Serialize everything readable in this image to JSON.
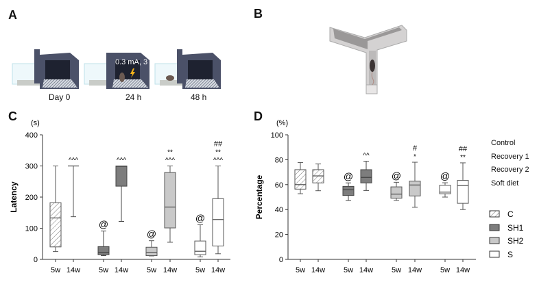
{
  "panels": {
    "a": {
      "letter": "A",
      "stages": [
        "Day 0",
        "24 h",
        "48 h"
      ],
      "shock_label": "0.3 mA, 3 s"
    },
    "b": {
      "letter": "B"
    },
    "c": {
      "letter": "C"
    },
    "d": {
      "letter": "D"
    }
  },
  "legend": {
    "conditions": [
      "Control",
      "Recovery 1",
      "Recovery 2",
      "Soft diet"
    ],
    "groups": [
      {
        "label": "C",
        "fill": "hatch"
      },
      {
        "label": "SH1",
        "fill": "#7d7d7d"
      },
      {
        "label": "SH2",
        "fill": "#c9c9c9"
      },
      {
        "label": "S",
        "fill": "#ffffff"
      }
    ]
  },
  "chart_data": [
    {
      "type": "box",
      "panel": "C",
      "unit": "(s)",
      "ylabel": "Latency",
      "ylim": [
        0,
        400
      ],
      "yticks": [
        "0",
        "100",
        "200",
        "300",
        "400"
      ],
      "categories": [
        "5w",
        "14w",
        "5w",
        "14w",
        "5w",
        "14w",
        "5w",
        "14w"
      ],
      "groups": [
        "C",
        "C",
        "SH1",
        "SH1",
        "SH2",
        "SH2",
        "S",
        "S"
      ],
      "boxes": [
        {
          "min": 25,
          "q1": 40,
          "median": 133,
          "q3": 182,
          "max": 300,
          "marks": []
        },
        {
          "min": 137,
          "q1": 300,
          "median": 300,
          "q3": 300,
          "max": 300,
          "marks": [
            "^^^"
          ]
        },
        {
          "min": 12,
          "q1": 15,
          "median": 22,
          "q3": 41,
          "max": 91,
          "marks": [
            "@"
          ]
        },
        {
          "min": 122,
          "q1": 235,
          "median": 299,
          "q3": 300,
          "max": 300,
          "marks": [
            "^^^"
          ]
        },
        {
          "min": 11,
          "q1": 12,
          "median": 22,
          "q3": 39,
          "max": 60,
          "marks": [
            "@"
          ]
        },
        {
          "min": 55,
          "q1": 101,
          "median": 168,
          "q3": 279,
          "max": 300,
          "marks": [
            "^^^",
            "**"
          ]
        },
        {
          "min": 8,
          "q1": 15,
          "median": 26,
          "q3": 59,
          "max": 111,
          "marks": [
            "@"
          ]
        },
        {
          "min": 18,
          "q1": 43,
          "median": 128,
          "q3": 195,
          "max": 300,
          "marks": [
            "^^^",
            "**",
            "##"
          ]
        }
      ]
    },
    {
      "type": "box",
      "panel": "D",
      "unit": "(%)",
      "ylabel": "Percentage",
      "ylim": [
        0,
        100
      ],
      "yticks": [
        "0",
        "20",
        "40",
        "60",
        "80",
        "100"
      ],
      "categories": [
        "5w",
        "14w",
        "5w",
        "14w",
        "5w",
        "14w",
        "5w",
        "14w"
      ],
      "groups": [
        "C",
        "C",
        "SH1",
        "SH1",
        "SH2",
        "SH2",
        "S",
        "S"
      ],
      "boxes": [
        {
          "min": 52.7,
          "q1": 56.4,
          "median": 60,
          "q3": 72,
          "max": 77.8,
          "marks": []
        },
        {
          "min": 55.1,
          "q1": 61.4,
          "median": 67,
          "q3": 72,
          "max": 76.6,
          "marks": []
        },
        {
          "min": 47.3,
          "q1": 51.3,
          "median": 55.9,
          "q3": 58.6,
          "max": 61.4,
          "marks": [
            "@"
          ]
        },
        {
          "min": 55.3,
          "q1": 61.4,
          "median": 65.8,
          "q3": 72,
          "max": 78.8,
          "marks": [
            "^^"
          ]
        },
        {
          "min": 47.3,
          "q1": 49.1,
          "median": 52.4,
          "q3": 58.2,
          "max": 61.9,
          "marks": [
            "@"
          ]
        },
        {
          "min": 41.8,
          "q1": 50.9,
          "median": 59.7,
          "q3": 62.8,
          "max": 78,
          "marks": [
            "*",
            "#"
          ]
        },
        {
          "min": 50,
          "q1": 52.7,
          "median": 54,
          "q3": 59.5,
          "max": 61.5,
          "marks": [
            "@"
          ]
        },
        {
          "min": 40,
          "q1": 45,
          "median": 59.3,
          "q3": 63.4,
          "max": 77.5,
          "marks": [
            "**",
            "##"
          ]
        }
      ]
    }
  ]
}
